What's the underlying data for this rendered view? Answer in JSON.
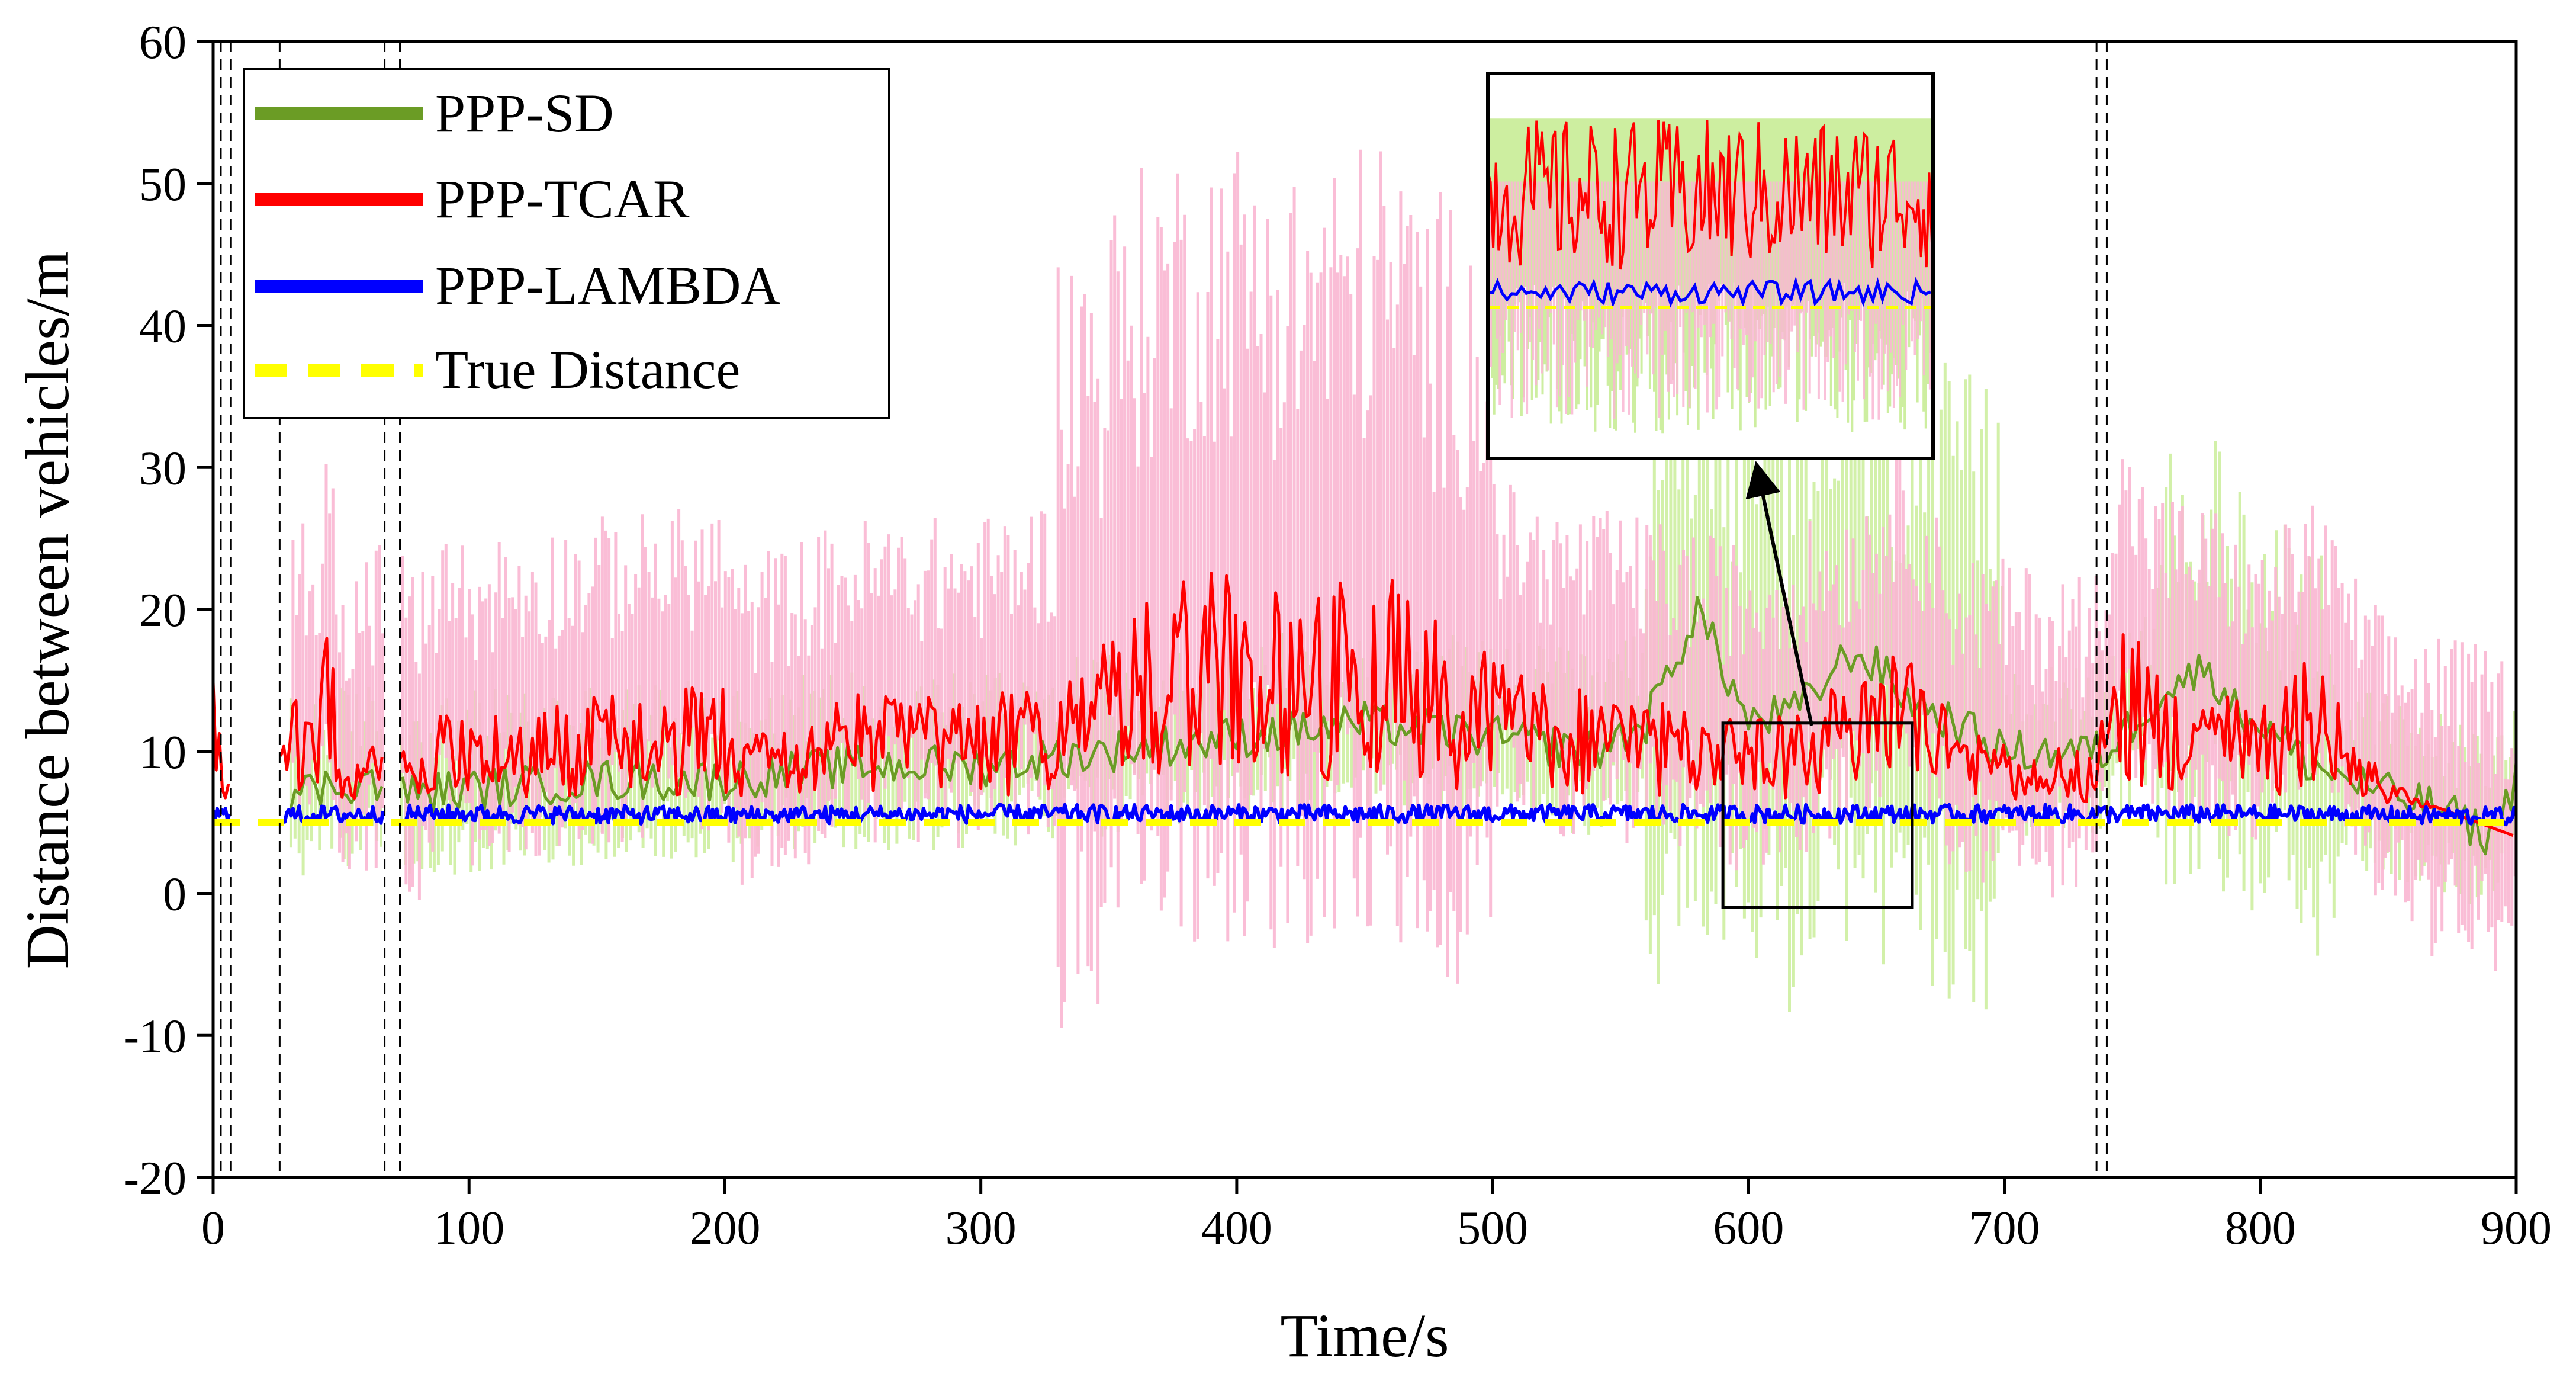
{
  "chart_data": {
    "type": "line",
    "title": "",
    "xlabel": "Time/s",
    "ylabel": "Distance between vehicles/m",
    "xlim": [
      0,
      900
    ],
    "ylim": [
      -20,
      60
    ],
    "xticks": [
      0,
      100,
      200,
      300,
      400,
      500,
      600,
      700,
      800,
      900
    ],
    "yticks": [
      -20,
      -10,
      0,
      10,
      20,
      30,
      40,
      50,
      60
    ],
    "grid": false,
    "legend_position": "top-left",
    "series": [
      {
        "name": "PPP-SD",
        "color": "#6b9c25",
        "band_color": "#cdeea0",
        "style": "solid",
        "x": [
          30,
          60,
          75,
          150,
          200,
          250,
          300,
          350,
          400,
          450,
          500,
          540,
          560,
          580,
          600,
          620,
          640,
          650,
          660,
          680,
          700,
          740,
          760,
          780,
          790,
          800,
          820,
          850,
          870,
          890,
          900
        ],
        "values": [
          7,
          8,
          7,
          8,
          8,
          9,
          9,
          10,
          11,
          12,
          11,
          10,
          12,
          20,
          12,
          13,
          17,
          16,
          14,
          12,
          10,
          10,
          14,
          16,
          13,
          12,
          9,
          7,
          6,
          4,
          8
        ]
      },
      {
        "name": "PPP-TCAR",
        "color": "#ff0000",
        "band_color": "#f9b6d2",
        "style": "solid",
        "x": [
          0,
          5,
          30,
          40,
          45,
          50,
          60,
          70,
          80,
          90,
          100,
          110,
          150,
          200,
          205,
          250,
          300,
          340,
          370,
          400,
          420,
          440,
          460,
          470,
          490,
          520,
          560,
          600,
          640,
          660,
          680,
          700,
          735,
          745,
          760,
          780,
          800,
          820,
          835,
          850,
          870,
          900
        ],
        "values": [
          15,
          8,
          17,
          12,
          20,
          11,
          12,
          12,
          10,
          14,
          12,
          13,
          14,
          15,
          11,
          14,
          14,
          16,
          22,
          23,
          21,
          22,
          23,
          20,
          18,
          15,
          14,
          12,
          15,
          19,
          12,
          11,
          10,
          20,
          16,
          15,
          13,
          17,
          12,
          8,
          6,
          4
        ]
      },
      {
        "name": "PPP-LAMBDA",
        "color": "#0000ff",
        "style": "solid",
        "x": [
          0,
          100,
          200,
          300,
          400,
          500,
          600,
          700,
          800,
          900
        ],
        "values": [
          5.5,
          5.6,
          5.5,
          5.6,
          5.6,
          5.6,
          5.6,
          5.6,
          5.6,
          5.4
        ]
      },
      {
        "name": "True Distance",
        "color": "#ffff00",
        "style": "dashed",
        "x": [
          0,
          900
        ],
        "values": [
          5,
          5
        ]
      }
    ],
    "annotations": {
      "vertical_dashed_lines_x": [
        3,
        7,
        26,
        67,
        73,
        736,
        740
      ],
      "zoom_box": {
        "x_range": [
          590,
          664
        ],
        "y_range": [
          -1,
          12
        ]
      }
    }
  }
}
